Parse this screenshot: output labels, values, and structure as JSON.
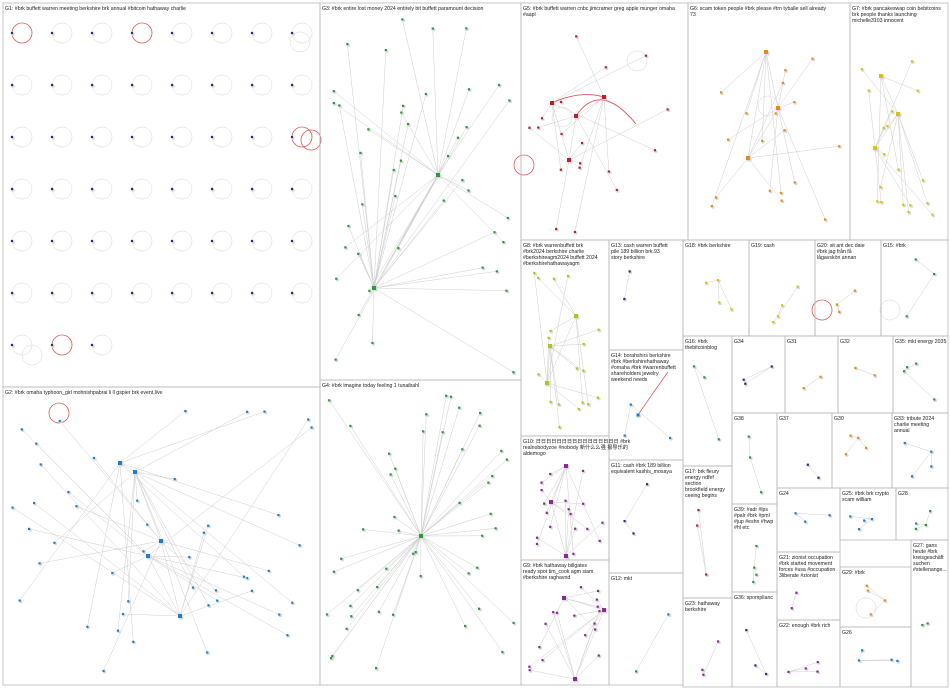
{
  "colors": {
    "background": "#ffffff",
    "box_border": "#b9b9b9",
    "edge": "#cfcfcf",
    "highlight_edge": "#e05a5a",
    "node_navy": "#2b2f7a",
    "node_green": "#2a9a3f",
    "node_blue": "#1f7ec8",
    "node_red": "#b3232b",
    "node_orange": "#e68a1c",
    "node_yellow": "#d6c21a",
    "node_purple": "#8a2b93"
  },
  "groups": [
    {
      "id": "G1",
      "label": "G1: #brk buffett warren meeting berkshire brk annual #bitcoin hathaway charlie",
      "style": "grid",
      "color": "#2b2f7a"
    },
    {
      "id": "G2",
      "label": "G2: #brk omaha typhoon_girl mohnishpabrai li ll gspier brk event,live",
      "style": "hub",
      "color": "#1f7ec8"
    },
    {
      "id": "G3",
      "label": "G3: #brk entire lost money 2024 entirely bit buffett paramount decision",
      "style": "star",
      "color": "#2a9a3f"
    },
    {
      "id": "G4",
      "label": "G4: #brk imagine today feeling 1 tunaibahl",
      "style": "star",
      "color": "#2a9a3f"
    },
    {
      "id": "G5",
      "label": "G5: #brk buffett warren cnbc jimcramer greg apple munger omaha #aapl",
      "style": "star",
      "color": "#b3232b"
    },
    {
      "id": "G6",
      "label": "G6: scam token people #brk please #trn tyballe sell already 73",
      "style": "star",
      "color": "#e68a1c"
    },
    {
      "id": "G7",
      "label": "G7: #brk pancakeswap coin bebitcoins brk people thanks launching michelle3103 innocent",
      "style": "star",
      "color": "#d6c21a"
    },
    {
      "id": "G8",
      "label": "G8: #brk warrenbuffett brk #brk2024 berkshire charlie #berkshireagm2024 buffett 2024 #berkshirehathawayagm",
      "style": "star",
      "color": "#b5c21a"
    },
    {
      "id": "G9",
      "label": "G9: #brk hathaway billgates ready spot tim_cook agm siam #berkshire raghavnd",
      "style": "star",
      "color": "#8a2b93"
    },
    {
      "id": "G10",
      "label": "G10: 日日日日日日日日日日日日日日日日 #brk realnobodyzoe #nobody 新什么么强 报导乐的 aldemogo",
      "style": "star",
      "color": "#8a2b93"
    },
    {
      "id": "G11",
      "label": "G11: cash #brk 189 billion equivalent kashis_mosaya",
      "style": "small",
      "color": "#2b2f7a"
    },
    {
      "id": "G12",
      "label": "G12: mkt",
      "style": "small",
      "color": "#1f7ec8"
    },
    {
      "id": "G13",
      "label": "G13: cash warren buffett pile 189 billion brk.93 story berkshire",
      "style": "small",
      "color": "#2b2f7a"
    },
    {
      "id": "G14",
      "label": "G14: borahshirs berkshire #brk #berkshirehathaway #omaha #brk #warrenbuffett shareholders jewelry weekend needs",
      "style": "small",
      "color": "#1f7ec8"
    },
    {
      "id": "G15",
      "label": "G15: #brk",
      "style": "small",
      "color": "#2a9a3f"
    },
    {
      "id": "G16",
      "label": "G16: #brk thebitcoinblog",
      "style": "small",
      "color": "#2a9a3f"
    },
    {
      "id": "G17",
      "label": "G17: brk fleury energy ndfef section brookfield energy ceeing begins well brookfield",
      "style": "small",
      "color": "#b3232b"
    },
    {
      "id": "G18",
      "label": "G18: #brk berkshire",
      "style": "small",
      "color": "#d6c21a"
    },
    {
      "id": "G19",
      "label": "G19: cash",
      "style": "small",
      "color": "#d6c21a"
    },
    {
      "id": "G20",
      "label": "G20: sit ant dec daie #brk jag från få lågavskön annan",
      "style": "small",
      "color": "#e68a1c"
    },
    {
      "id": "G21",
      "label": "G21: zionist occupation #brk started movement forces #usa #occupation 3liberate #zionist",
      "style": "small",
      "color": "#8a2b93"
    },
    {
      "id": "G22",
      "label": "G22: enough #brk rich",
      "style": "small",
      "color": "#8a2b93"
    },
    {
      "id": "G23",
      "label": "G23: hathaway berkshire",
      "style": "small",
      "color": "#8a2b93"
    },
    {
      "id": "G24",
      "label": "G24",
      "style": "small",
      "color": "#1f7ec8"
    },
    {
      "id": "G25",
      "label": "G25: #brk brk crypto scam william",
      "style": "small",
      "color": "#1f7ec8"
    },
    {
      "id": "G26",
      "label": "G26",
      "style": "small",
      "color": "#1f7ec8"
    },
    {
      "id": "G27",
      "label": "G27: gans heute #brk kreisgeschäft suchen #stellenange... besonderes",
      "style": "small",
      "color": "#2a9a3f"
    },
    {
      "id": "G28",
      "label": "G28",
      "style": "small",
      "color": "#2a9a3f"
    },
    {
      "id": "G29",
      "label": "G29: #brk",
      "style": "small",
      "color": "#e68a1c"
    },
    {
      "id": "G30",
      "label": "G30",
      "style": "small",
      "color": "#e68a1c"
    },
    {
      "id": "G31",
      "label": "G31",
      "style": "small",
      "color": "#e68a1c"
    },
    {
      "id": "G32",
      "label": "G32",
      "style": "small",
      "color": "#e68a1c"
    },
    {
      "id": "G33",
      "label": "G33: tribute 2024 charlie meeting annual",
      "style": "small",
      "color": "#1f7ec8"
    },
    {
      "id": "G34",
      "label": "G34",
      "style": "small",
      "color": "#2b2f7a"
    },
    {
      "id": "G35",
      "label": "G35: mkt energy 2035",
      "style": "small",
      "color": "#2a9a3f"
    },
    {
      "id": "G36",
      "label": "G36: spomplianc",
      "style": "small",
      "color": "#2b2f7a"
    },
    {
      "id": "G37",
      "label": "G37",
      "style": "small",
      "color": "#2b2f7a"
    },
    {
      "id": "G38",
      "label": "G38",
      "style": "small",
      "color": "#2a9a3f"
    },
    {
      "id": "G39",
      "label": "G39: #adr #lps #palr #brk #pml #jup #eshn #hwp #hl etc",
      "style": "small",
      "color": "#2a9a3f"
    }
  ]
}
